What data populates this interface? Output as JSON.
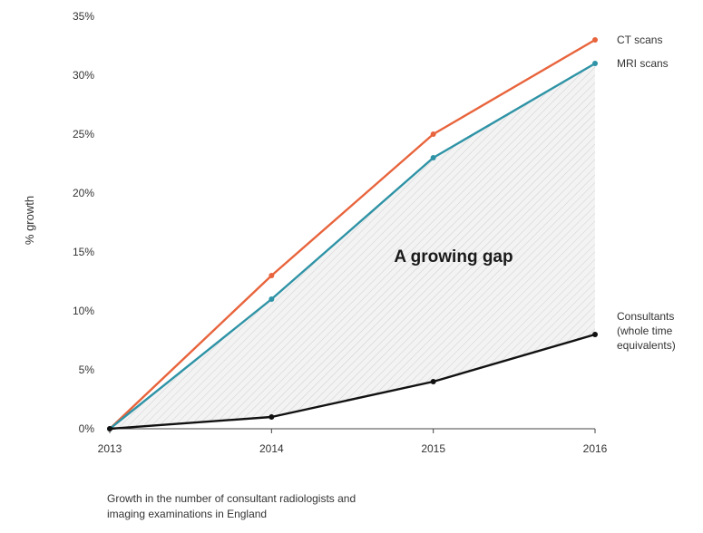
{
  "chart_data": {
    "type": "line",
    "x": [
      "2013",
      "2014",
      "2015",
      "2016"
    ],
    "ylabel": "% growth",
    "ylim": [
      0,
      35
    ],
    "y_ticks": [
      "0%",
      "5%",
      "10%",
      "15%",
      "20%",
      "25%",
      "30%",
      "35%"
    ],
    "series": [
      {
        "name": "CT scans",
        "values": [
          0,
          13,
          25,
          33
        ],
        "color": "#e8643c"
      },
      {
        "name": "MRI scans",
        "values": [
          0,
          11,
          23,
          31
        ],
        "color": "#2e93a6"
      },
      {
        "name": "Consultants (whole time equivalents)",
        "label_lines": [
          "Consultants",
          "(whole time",
          "equivalents)"
        ],
        "values": [
          0,
          1,
          4,
          8
        ],
        "color": "#111111"
      }
    ],
    "annotation": "A growing gap",
    "caption": [
      "Growth in the number of consultant radiologists and",
      "imaging examinations in England"
    ]
  }
}
